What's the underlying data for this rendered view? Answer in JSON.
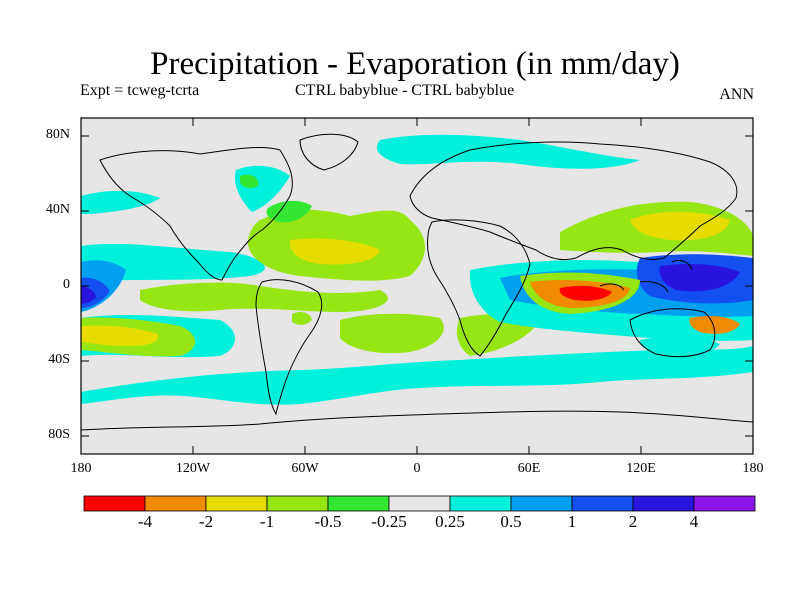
{
  "title": "Precipitation - Evaporation (in mm/day)",
  "subtitle_left": "Expt = tcweg-tcrta",
  "subtitle_center": "CTRL babyblue - CTRL babyblue",
  "subtitle_right": "ANN",
  "lat_ticks": [
    "80N",
    "40N",
    "0",
    "40S",
    "80S"
  ],
  "lon_ticks": [
    "180",
    "120W",
    "60W",
    "0",
    "60E",
    "120E",
    "180"
  ],
  "colorbar": {
    "colors": [
      "#ff0000",
      "#f08a00",
      "#e6dc00",
      "#96e614",
      "#32e632",
      "#e6e6e6",
      "#00f0dc",
      "#00a0f0",
      "#1450f0",
      "#2814dc",
      "#8c14e6"
    ],
    "labels": [
      "-4",
      "-2",
      "-1",
      "-0.5",
      "-0.25",
      "0.25",
      "0.5",
      "1",
      "2",
      "4"
    ]
  }
}
